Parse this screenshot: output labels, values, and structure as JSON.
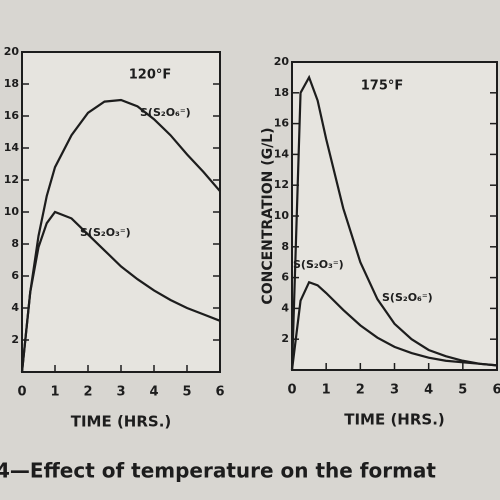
{
  "chart_data": [
    {
      "type": "line",
      "title": "120°F",
      "x_label": "TIME (HRS.)",
      "x": [
        0,
        0.25,
        0.5,
        0.75,
        1,
        1.5,
        2,
        2.5,
        3,
        3.5,
        4,
        4.5,
        5,
        5.5,
        6
      ],
      "series": [
        {
          "name": "S(S₂O₆⁼)",
          "color": "#1d1d1d",
          "values": [
            0,
            5,
            8.5,
            11,
            12.8,
            14.8,
            16.2,
            16.9,
            17,
            16.6,
            15.8,
            14.8,
            13.6,
            12.5,
            11.3
          ]
        },
        {
          "name": "S(S₂O₃⁼)",
          "color": "#1d1d1d",
          "values": [
            0,
            5,
            7.8,
            9.3,
            10,
            9.6,
            8.6,
            7.6,
            6.6,
            5.8,
            5.1,
            4.5,
            4,
            3.6,
            3.2
          ]
        }
      ],
      "xlim": [
        0,
        6
      ],
      "ylim": [
        0,
        20
      ],
      "xticks": [
        0,
        1,
        2,
        3,
        4,
        5,
        6
      ],
      "yticks": [
        2,
        4,
        6,
        8,
        10,
        12,
        14,
        16,
        18,
        20
      ]
    },
    {
      "type": "line",
      "title": "175°F",
      "x_label": "TIME (HRS.)",
      "y_label": "CONCENTRATION (G/L)",
      "x": [
        0,
        0.25,
        0.5,
        0.75,
        1,
        1.5,
        2,
        2.5,
        3,
        3.5,
        4,
        4.5,
        5,
        5.5,
        6
      ],
      "series": [
        {
          "name": "S(S₂O₆⁼)",
          "color": "#1d1d1d",
          "values": [
            0,
            18,
            19,
            17.5,
            15,
            10.5,
            7,
            4.6,
            3,
            2,
            1.3,
            0.9,
            0.6,
            0.4,
            0.3
          ]
        },
        {
          "name": "S(S₂O₃⁼)",
          "color": "#1d1d1d",
          "values": [
            0,
            4.5,
            5.7,
            5.5,
            5,
            3.9,
            2.9,
            2.1,
            1.5,
            1.1,
            0.8,
            0.6,
            0.5,
            0.4,
            0.3
          ]
        }
      ],
      "xlim": [
        0,
        6
      ],
      "ylim": [
        0,
        20
      ],
      "xticks": [
        0,
        1,
        2,
        3,
        4,
        5,
        6
      ],
      "yticks": [
        2,
        4,
        6,
        8,
        10,
        12,
        14,
        16,
        18,
        20
      ]
    }
  ],
  "caption": "4—Effect of temperature on the format"
}
